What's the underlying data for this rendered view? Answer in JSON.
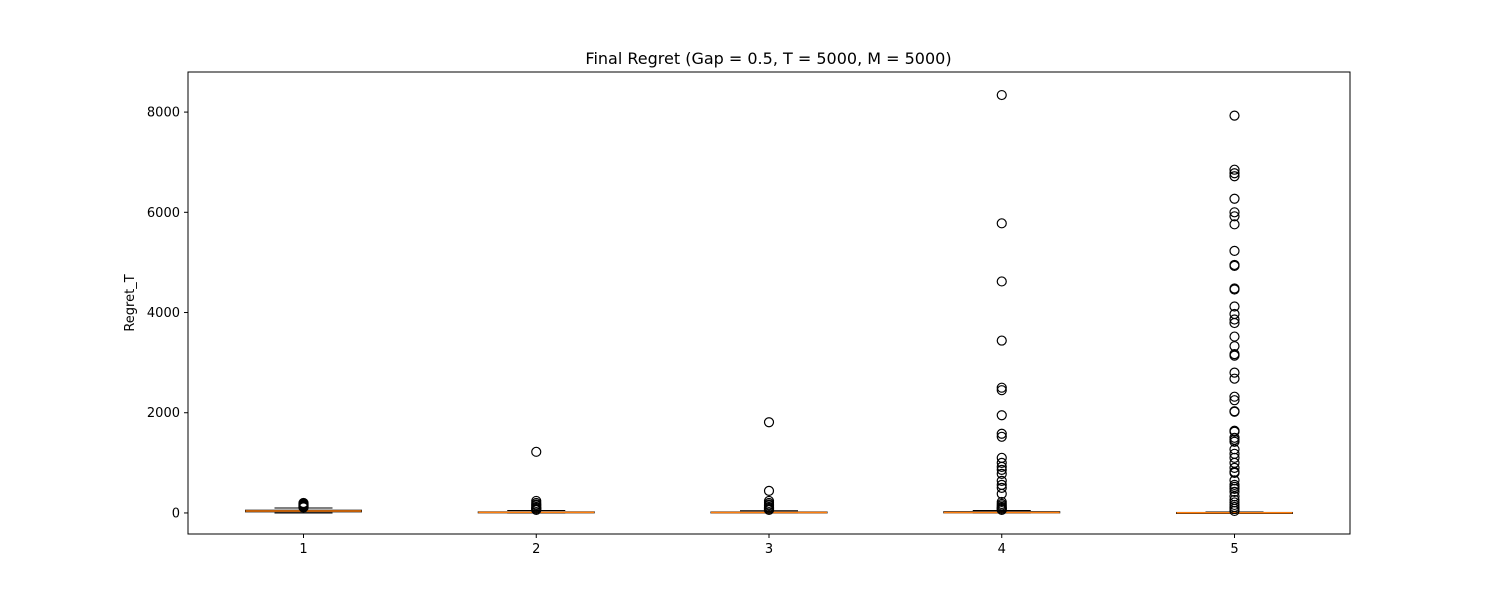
{
  "chart_data": {
    "type": "box",
    "title": "Final Regret (Gap = 0.5, T = 5000, M = 5000)",
    "xlabel": "",
    "ylabel": "Regret_T",
    "ylim": [
      -420,
      8800
    ],
    "yticks": [
      0,
      2000,
      4000,
      6000,
      8000
    ],
    "grid": false,
    "categories": [
      "1",
      "2",
      "3",
      "4",
      "5"
    ],
    "boxes": [
      {
        "q1": 22,
        "median": 38,
        "q3": 55,
        "whisker_low": 0,
        "whisker_high": 100,
        "outliers": [
          110,
          120,
          130,
          140,
          150,
          160,
          170,
          180,
          190,
          200
        ]
      },
      {
        "q1": 5,
        "median": 12,
        "q3": 22,
        "whisker_low": 0,
        "whisker_high": 50,
        "outliers": [
          1220,
          240,
          200,
          170,
          150,
          120,
          100,
          80,
          60
        ]
      },
      {
        "q1": 3,
        "median": 10,
        "q3": 20,
        "whisker_low": 0,
        "whisker_high": 45,
        "outliers": [
          1810,
          440,
          240,
          200,
          170,
          150,
          120,
          100,
          80,
          60
        ]
      },
      {
        "q1": 2,
        "median": 10,
        "q3": 25,
        "whisker_low": 0,
        "whisker_high": 50,
        "outliers": [
          8340,
          5780,
          4620,
          3440,
          2500,
          2450,
          1950,
          1580,
          1520,
          1100,
          1000,
          920,
          860,
          780,
          640,
          560,
          500,
          380,
          220,
          180,
          150,
          120,
          100,
          80,
          60
        ]
      },
      {
        "q1": 1,
        "median": 5,
        "q3": 10,
        "whisker_low": 0,
        "whisker_high": 20,
        "outliers": [
          7930,
          6850,
          6780,
          6720,
          6270,
          6000,
          5920,
          5760,
          5230,
          4950,
          4930,
          4480,
          4460,
          4120,
          3970,
          3860,
          3790,
          3520,
          3330,
          3170,
          3140,
          2800,
          2680,
          2320,
          2250,
          2030,
          2020,
          1640,
          1620,
          1500,
          1460,
          1420,
          1270,
          1180,
          1100,
          1000,
          900,
          820,
          800,
          650,
          560,
          520,
          480,
          420,
          330,
          260,
          210,
          160,
          120,
          80,
          40
        ]
      }
    ],
    "colors": {
      "box": "#000000",
      "median": "#ff7f0e",
      "outlier": "#000000"
    }
  }
}
